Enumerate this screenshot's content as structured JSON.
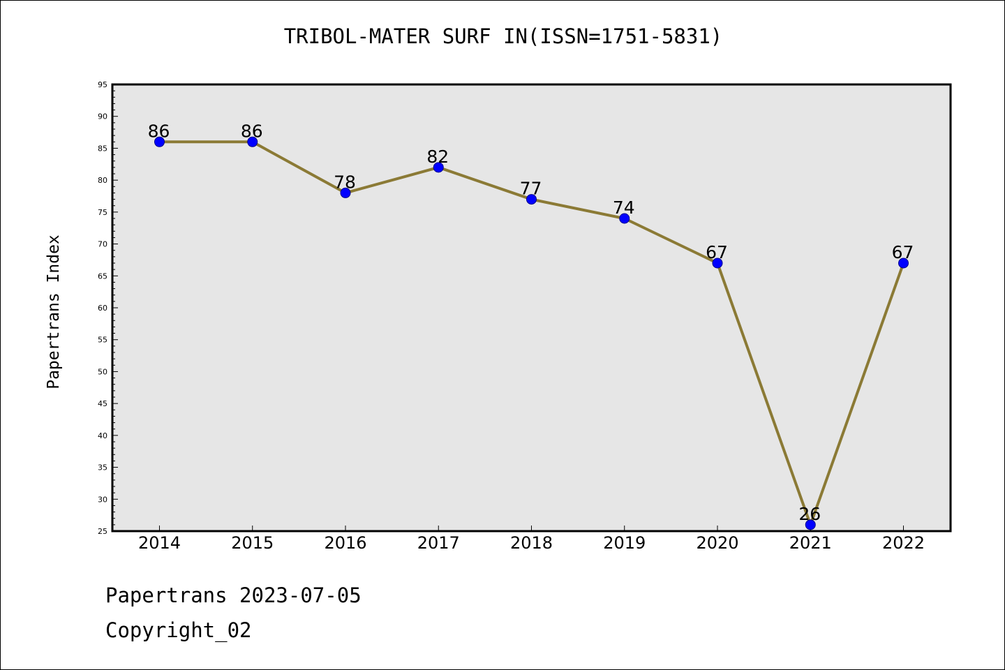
{
  "chart_data": {
    "type": "line",
    "title": "TRIBOL-MATER SURF IN(ISSN=1751-5831)",
    "xlabel": "",
    "ylabel": "Papertrans Index",
    "categories": [
      "2014",
      "2015",
      "2016",
      "2017",
      "2018",
      "2019",
      "2020",
      "2021",
      "2022"
    ],
    "series": [
      {
        "values": [
          86,
          86,
          78,
          82,
          77,
          74,
          67,
          26,
          67
        ]
      }
    ],
    "ylim": [
      25,
      95
    ],
    "yticks": [
      25,
      30,
      35,
      40,
      45,
      50,
      55,
      60,
      65,
      70,
      75,
      80,
      85,
      90,
      95
    ],
    "grid": false,
    "legend": "none",
    "data_labels": true,
    "colors": {
      "line": "#8b7a35",
      "marker_fill": "#0000ff",
      "marker_edge": "#00008b",
      "plot_background": "#e6e6e6"
    }
  },
  "footer": {
    "date_line": "Papertrans 2023-07-05",
    "copyright_line": "Copyright_02"
  }
}
